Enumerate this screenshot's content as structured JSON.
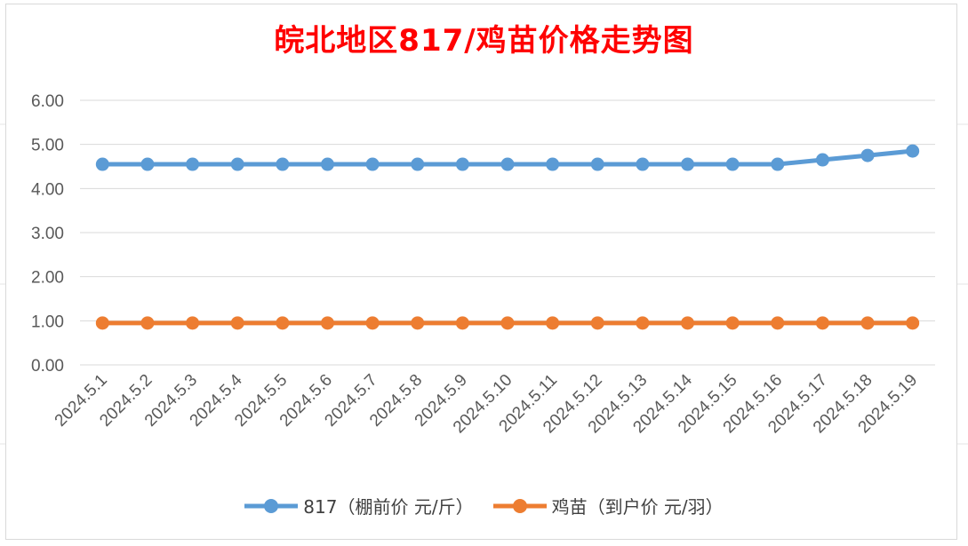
{
  "chart_data": {
    "type": "line",
    "title": "皖北地区817/鸡苗价格走势图",
    "categories": [
      "2024.5.1",
      "2024.5.2",
      "2024.5.3",
      "2024.5.4",
      "2024.5.5",
      "2024.5.6",
      "2024.5.7",
      "2024.5.8",
      "2024.5.9",
      "2024.5.10",
      "2024.5.11",
      "2024.5.12",
      "2024.5.13",
      "2024.5.14",
      "2024.5.15",
      "2024.5.16",
      "2024.5.17",
      "2024.5.18",
      "2024.5.19"
    ],
    "series": [
      {
        "name": "817（棚前价 元/斤）",
        "color": "#5b9bd5",
        "values": [
          4.55,
          4.55,
          4.55,
          4.55,
          4.55,
          4.55,
          4.55,
          4.55,
          4.55,
          4.55,
          4.55,
          4.55,
          4.55,
          4.55,
          4.55,
          4.55,
          4.65,
          4.75,
          4.85
        ]
      },
      {
        "name": "鸡苗（到户价 元/羽）",
        "color": "#ed7d31",
        "values": [
          0.95,
          0.95,
          0.95,
          0.95,
          0.95,
          0.95,
          0.95,
          0.95,
          0.95,
          0.95,
          0.95,
          0.95,
          0.95,
          0.95,
          0.95,
          0.95,
          0.95,
          0.95,
          0.95
        ]
      }
    ],
    "yticks": [
      "0.00",
      "1.00",
      "2.00",
      "3.00",
      "4.00",
      "5.00",
      "6.00"
    ],
    "ylim": [
      0,
      6
    ],
    "grid": true,
    "legend_position": "bottom"
  }
}
